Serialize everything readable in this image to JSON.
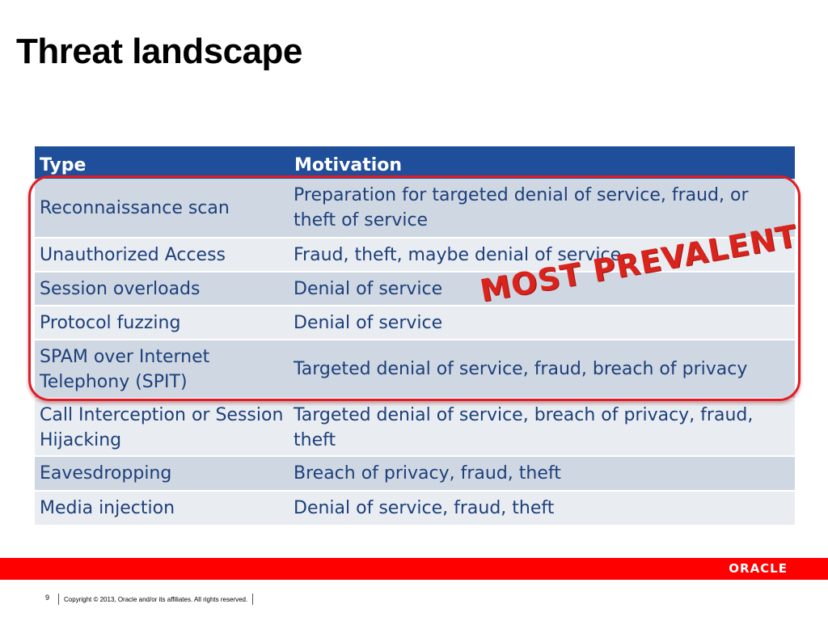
{
  "title": "Threat landscape",
  "table": {
    "headers": [
      "Type",
      "Motivation"
    ],
    "rows": [
      {
        "type": "Reconnaissance scan",
        "motivation": "Preparation for targeted denial of service, fraud, or theft of service"
      },
      {
        "type": "Unauthorized Access",
        "motivation": "Fraud, theft, maybe denial of service"
      },
      {
        "type": "Session overloads",
        "motivation": "Denial of service"
      },
      {
        "type": "Protocol fuzzing",
        "motivation": "Denial of service"
      },
      {
        "type": "SPAM over Internet Telephony (SPIT)",
        "motivation": "Targeted denial of service, fraud, breach of privacy"
      },
      {
        "type": "Call Interception or Session Hijacking",
        "motivation": "Targeted denial of service, breach of privacy, fraud, theft"
      },
      {
        "type": "Eavesdropping",
        "motivation": "Breach of privacy, fraud, theft"
      },
      {
        "type": "Media injection",
        "motivation": "Denial of service, fraud, theft"
      }
    ]
  },
  "stamp": "MOST PREVALENT",
  "brand": {
    "logo_text": "ORACLE",
    "band_color": "#ff0000",
    "header_color": "#1f4e9a",
    "stamp_color": "#d9241e"
  },
  "footer": {
    "page_number": "9",
    "copyright": "Copyright © 2013, Oracle and/or its affiliates. All rights reserved."
  }
}
